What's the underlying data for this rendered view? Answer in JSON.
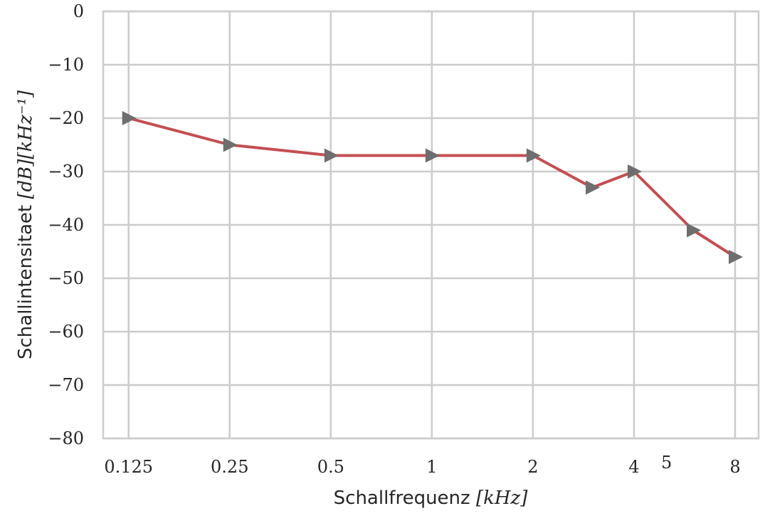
{
  "chart_data": {
    "type": "line",
    "xscale": "log2",
    "x_ticks": [
      {
        "value": 0.125,
        "label": "0.125"
      },
      {
        "value": 0.25,
        "label": "0.25"
      },
      {
        "value": 0.5,
        "label": "0.5"
      },
      {
        "value": 1,
        "label": "1"
      },
      {
        "value": 2,
        "label": "2"
      },
      {
        "value": 4,
        "label": "4"
      },
      {
        "value": 8,
        "label": "8"
      }
    ],
    "x_minor_ticks": [
      {
        "value": 5,
        "label": "5"
      }
    ],
    "y_ticks": [
      {
        "value": 0,
        "label": "0"
      },
      {
        "value": -10,
        "label": "−10"
      },
      {
        "value": -20,
        "label": "−20"
      },
      {
        "value": -30,
        "label": "−30"
      },
      {
        "value": -40,
        "label": "−40"
      },
      {
        "value": -50,
        "label": "−50"
      },
      {
        "value": -60,
        "label": "−60"
      },
      {
        "value": -70,
        "label": "−70"
      },
      {
        "value": -80,
        "label": "−80"
      }
    ],
    "xlim": [
      0.105,
      9.4
    ],
    "ylim": [
      -80,
      0
    ],
    "grid": true,
    "xlabel": {
      "text": "Schallfrequenz ",
      "unit": "[kHz]"
    },
    "ylabel": {
      "text": "Schallintensitaet ",
      "unit": "[dB][kHz⁻¹]"
    },
    "series": [
      {
        "color": "#c44e52",
        "marker": "triangle-right",
        "marker_color": "#6e6e6e",
        "x": [
          0.125,
          0.25,
          0.5,
          1,
          2,
          3,
          4,
          6,
          8
        ],
        "y": [
          -20,
          -25,
          -27,
          -27,
          -27,
          -33,
          -30,
          -41,
          -46
        ]
      }
    ]
  }
}
